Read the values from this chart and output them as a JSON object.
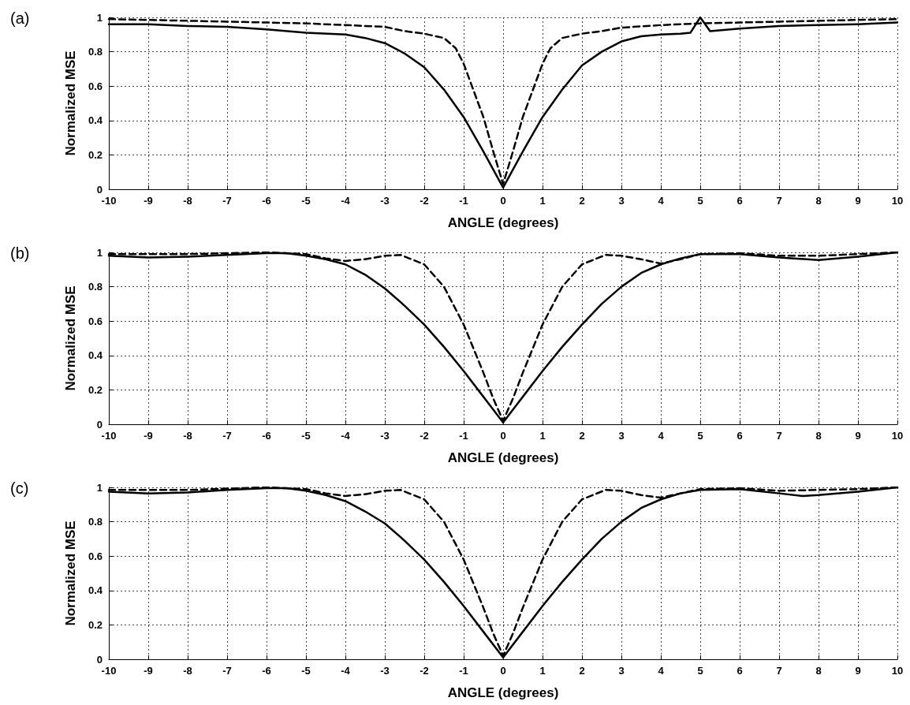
{
  "chart_data": [
    {
      "type": "line",
      "title": "(a)",
      "xlabel": "ANGLE (degrees)",
      "ylabel": "Normalized MSE",
      "xlim": [
        -10,
        10
      ],
      "xticks": [
        -10,
        -9,
        -8,
        -7,
        -6,
        -5,
        -4,
        -3,
        -2,
        -1,
        0,
        1,
        2,
        3,
        4,
        5,
        6,
        7,
        8,
        9,
        10
      ],
      "ylim": [
        0,
        1
      ],
      "yticks": [
        0,
        0.2,
        0.4,
        0.6,
        0.8,
        1
      ],
      "grid": true,
      "marker": "none",
      "series": [
        {
          "color": "#000000",
          "line_style": "solid",
          "x": [
            -10,
            -9,
            -8,
            -7,
            -6,
            -5,
            -4,
            -3.5,
            -3,
            -2.5,
            -2,
            -1.5,
            -1,
            -0.5,
            0,
            0.5,
            1,
            1.5,
            2,
            2.5,
            3,
            3.5,
            4,
            4.5,
            4.75,
            5,
            5.25,
            6,
            7,
            8,
            9,
            10
          ],
          "values": [
            0.96,
            0.96,
            0.95,
            0.945,
            0.93,
            0.91,
            0.9,
            0.88,
            0.85,
            0.79,
            0.71,
            0.58,
            0.42,
            0.22,
            0.01,
            0.22,
            0.42,
            0.58,
            0.72,
            0.8,
            0.86,
            0.89,
            0.9,
            0.905,
            0.91,
            1.0,
            0.92,
            0.935,
            0.95,
            0.955,
            0.96,
            0.97
          ]
        },
        {
          "color": "#000000",
          "line_style": "dashed",
          "x": [
            -10,
            -9,
            -8,
            -7,
            -6,
            -5,
            -4,
            -3,
            -2.5,
            -2,
            -1.5,
            -1.2,
            -1,
            -0.5,
            -0.25,
            0,
            0.25,
            0.5,
            1,
            1.2,
            1.5,
            2,
            2.5,
            3,
            4,
            5,
            6,
            7,
            8,
            9,
            10
          ],
          "values": [
            0.99,
            0.985,
            0.98,
            0.975,
            0.97,
            0.965,
            0.955,
            0.945,
            0.92,
            0.905,
            0.88,
            0.82,
            0.73,
            0.42,
            0.22,
            0.03,
            0.22,
            0.42,
            0.73,
            0.82,
            0.88,
            0.905,
            0.92,
            0.94,
            0.955,
            0.965,
            0.97,
            0.975,
            0.98,
            0.985,
            0.99
          ]
        }
      ]
    },
    {
      "type": "line",
      "title": "(b)",
      "xlabel": "ANGLE (degrees)",
      "ylabel": "Normalized MSE",
      "xlim": [
        -10,
        10
      ],
      "xticks": [
        -10,
        -9,
        -8,
        -7,
        -6,
        -5,
        -4,
        -3,
        -2,
        -1,
        0,
        1,
        2,
        3,
        4,
        5,
        6,
        7,
        8,
        9,
        10
      ],
      "ylim": [
        0,
        1
      ],
      "yticks": [
        0,
        0.2,
        0.4,
        0.6,
        0.8,
        1
      ],
      "grid": true,
      "marker": "none",
      "series": [
        {
          "color": "#000000",
          "line_style": "solid",
          "x": [
            -10,
            -9,
            -8,
            -7,
            -6,
            -5.5,
            -5,
            -4.5,
            -4,
            -3.5,
            -3,
            -2.5,
            -2,
            -1.5,
            -1,
            -0.5,
            0,
            0.5,
            1,
            1.5,
            2,
            2.5,
            3,
            3.5,
            4,
            4.5,
            5,
            6,
            7,
            8,
            9,
            10
          ],
          "values": [
            0.98,
            0.97,
            0.975,
            0.985,
            0.995,
            0.995,
            0.98,
            0.96,
            0.93,
            0.87,
            0.79,
            0.69,
            0.58,
            0.45,
            0.31,
            0.16,
            0.01,
            0.16,
            0.31,
            0.45,
            0.58,
            0.7,
            0.8,
            0.88,
            0.93,
            0.965,
            0.99,
            0.99,
            0.97,
            0.955,
            0.975,
            1.0
          ]
        },
        {
          "color": "#000000",
          "line_style": "dashed",
          "x": [
            -10,
            -8,
            -6,
            -5,
            -4.5,
            -4,
            -3.5,
            -3,
            -2.6,
            -2,
            -1.5,
            -1,
            -0.5,
            -0.25,
            0,
            0.25,
            0.5,
            1,
            1.5,
            2,
            2.6,
            3,
            3.5,
            4,
            4.5,
            5,
            6,
            7,
            8,
            9,
            10
          ],
          "values": [
            0.99,
            0.99,
            1.0,
            0.99,
            0.965,
            0.95,
            0.96,
            0.98,
            0.985,
            0.93,
            0.8,
            0.58,
            0.3,
            0.15,
            0.02,
            0.15,
            0.3,
            0.58,
            0.8,
            0.93,
            0.985,
            0.98,
            0.96,
            0.935,
            0.96,
            0.99,
            0.995,
            0.98,
            0.98,
            0.99,
            1.0
          ]
        }
      ]
    },
    {
      "type": "line",
      "title": "(c)",
      "xlabel": "ANGLE (degrees)",
      "ylabel": "Normalized MSE",
      "xlim": [
        -10,
        10
      ],
      "xticks": [
        -10,
        -9,
        -8,
        -7,
        -6,
        -5,
        -4,
        -3,
        -2,
        -1,
        0,
        1,
        2,
        3,
        4,
        5,
        6,
        7,
        8,
        9,
        10
      ],
      "ylim": [
        0,
        1
      ],
      "yticks": [
        0,
        0.2,
        0.4,
        0.6,
        0.8,
        1
      ],
      "grid": true,
      "marker": "none",
      "series": [
        {
          "color": "#000000",
          "line_style": "solid",
          "x": [
            -10,
            -9,
            -8,
            -7,
            -6,
            -5.5,
            -5,
            -4.5,
            -4,
            -3.5,
            -3,
            -2.5,
            -2,
            -1.5,
            -1,
            -0.5,
            0,
            0.5,
            1,
            1.5,
            2,
            2.5,
            3,
            3.5,
            4,
            4.5,
            5,
            6,
            7,
            7.6,
            8,
            9,
            10
          ],
          "values": [
            0.975,
            0.965,
            0.97,
            0.985,
            0.995,
            0.995,
            0.98,
            0.955,
            0.92,
            0.86,
            0.79,
            0.69,
            0.58,
            0.45,
            0.31,
            0.16,
            0.01,
            0.16,
            0.31,
            0.45,
            0.58,
            0.7,
            0.8,
            0.88,
            0.93,
            0.965,
            0.985,
            0.99,
            0.965,
            0.95,
            0.955,
            0.975,
            1.0
          ]
        },
        {
          "color": "#000000",
          "line_style": "dashed",
          "x": [
            -10,
            -8,
            -6,
            -5,
            -4.5,
            -4,
            -3.5,
            -3,
            -2.6,
            -2,
            -1.5,
            -1,
            -0.5,
            -0.25,
            0,
            0.25,
            0.5,
            1,
            1.5,
            2,
            2.6,
            3,
            3.5,
            4,
            4.5,
            5,
            6,
            7,
            8,
            9,
            10
          ],
          "values": [
            0.985,
            0.985,
            1.0,
            0.99,
            0.965,
            0.95,
            0.96,
            0.98,
            0.985,
            0.93,
            0.8,
            0.58,
            0.3,
            0.15,
            0.02,
            0.15,
            0.3,
            0.58,
            0.8,
            0.93,
            0.985,
            0.98,
            0.955,
            0.94,
            0.965,
            0.99,
            0.995,
            0.98,
            0.985,
            0.99,
            1.0
          ]
        }
      ]
    }
  ]
}
